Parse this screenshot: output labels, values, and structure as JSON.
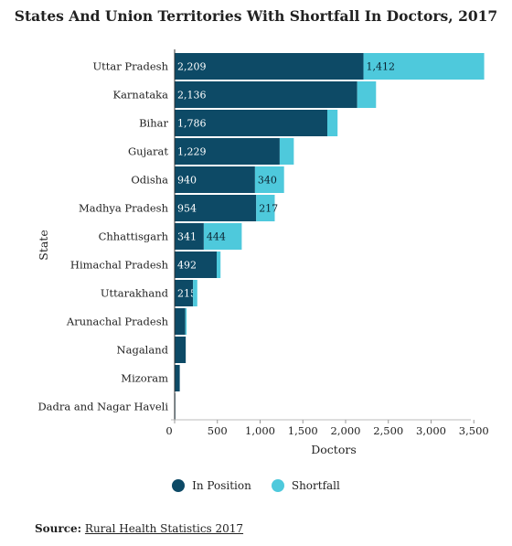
{
  "source": {
    "label": "Source:",
    "link_text": "Rural Health Statistics 2017"
  },
  "colors": {
    "in_position": "#0d4a66",
    "shortfall": "#4ec9dc"
  },
  "chart_data": {
    "type": "bar",
    "orientation": "horizontal",
    "stacked": true,
    "title": "States And Union Territories With Shortfall In Doctors, 2017",
    "xlabel": "Doctors",
    "ylabel": "State",
    "xlim": [
      0,
      3700
    ],
    "xticks": [
      0,
      500,
      1000,
      1500,
      2000,
      2500,
      3000,
      3500
    ],
    "xtick_labels": [
      "0",
      "500",
      "1,000",
      "1,500",
      "2,000",
      "2,500",
      "3,000",
      "3,500"
    ],
    "grid": false,
    "legend_position": "bottom",
    "categories": [
      "Uttar Pradesh",
      "Karnataka",
      "Bihar",
      "Gujarat",
      "Odisha",
      "Madhya Pradesh",
      "Chhattisgarh",
      "Himachal Pradesh",
      "Uttarakhand",
      "Arunachal Pradesh",
      "Nagaland",
      "Mizoram",
      "Dadra and Nagar Haveli"
    ],
    "series": [
      {
        "name": "In Position",
        "color": "#0d4a66",
        "values": [
          2209,
          2136,
          1786,
          1229,
          940,
          954,
          341,
          492,
          215,
          125,
          130,
          60,
          8
        ],
        "labels": [
          "2,209",
          "2,136",
          "1,786",
          "1,229",
          "940",
          "954",
          "341",
          "492",
          "215",
          "",
          "",
          "",
          ""
        ]
      },
      {
        "name": "Shortfall",
        "color": "#4ec9dc",
        "values": [
          1412,
          220,
          120,
          165,
          340,
          217,
          444,
          45,
          50,
          15,
          0,
          0,
          0
        ],
        "labels": [
          "1,412",
          "",
          "",
          "",
          "340",
          "217",
          "444",
          "",
          "",
          "",
          "",
          "",
          ""
        ]
      }
    ]
  }
}
